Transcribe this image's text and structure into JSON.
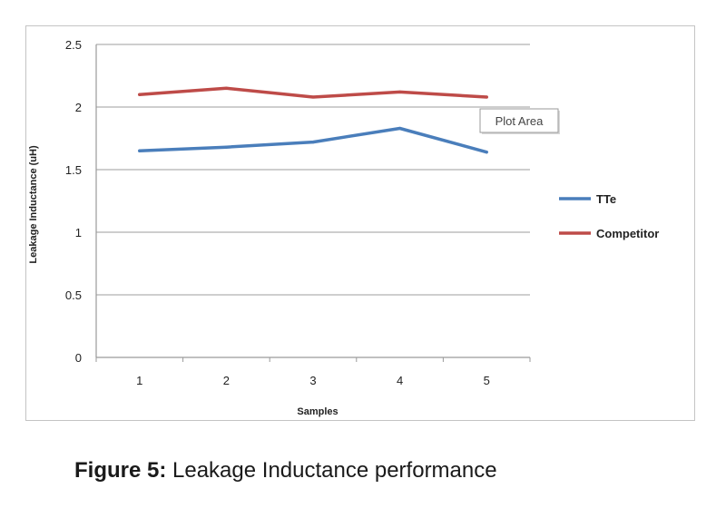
{
  "chart_data": {
    "type": "line",
    "title": "",
    "xlabel": "Samples",
    "ylabel": "Leakage Inductance (uH)",
    "categories": [
      "1",
      "2",
      "3",
      "4",
      "5"
    ],
    "ylim": [
      0,
      2.5
    ],
    "yticks": [
      "0",
      "0.5",
      "1",
      "1.5",
      "2",
      "2.5"
    ],
    "grid": true,
    "legend_position": "right",
    "series": [
      {
        "name": "TTe",
        "color": "#4a7ebb",
        "values": [
          1.65,
          1.68,
          1.72,
          1.83,
          1.64
        ]
      },
      {
        "name": "Competitor",
        "color": "#be4b48",
        "values": [
          2.1,
          2.15,
          2.08,
          2.12,
          2.08
        ]
      }
    ],
    "tooltip": "Plot Area"
  },
  "caption": {
    "label": "Figure 5:",
    "text": "Leakage Inductance performance"
  }
}
